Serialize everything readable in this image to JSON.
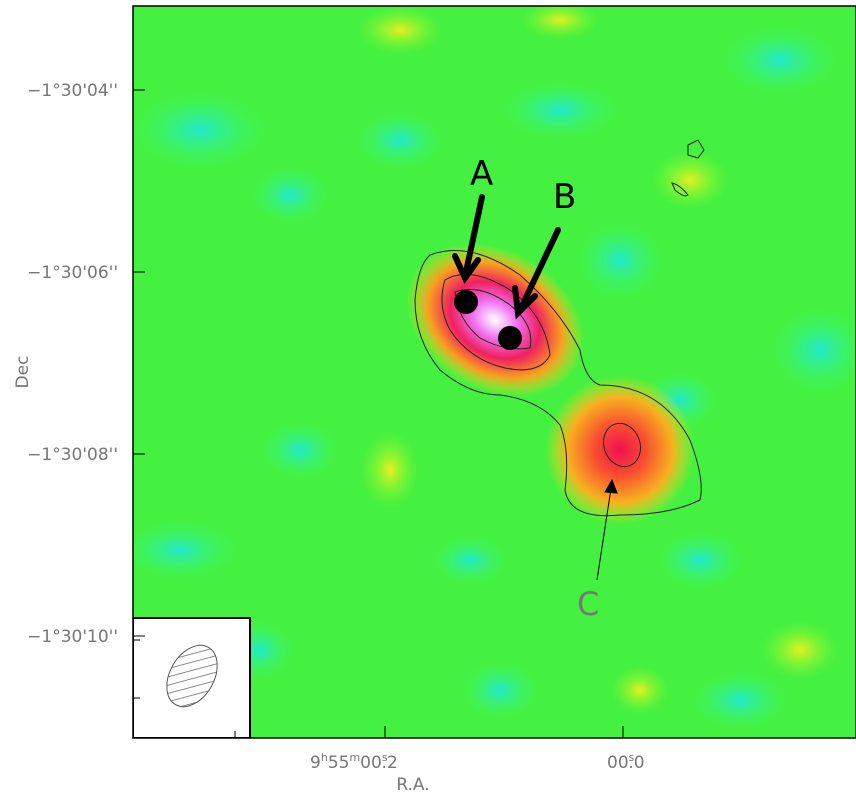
{
  "axes": {
    "y_label": "Dec",
    "x_label": "R.A.",
    "y_ticks": [
      "−1°30'04''",
      "−1°30'06''",
      "−1°30'08''",
      "−1°30'10''"
    ],
    "x_ticks": [
      [
        "9",
        "h",
        "55",
        "m",
        "00",
        "s",
        ".2"
      ],
      [
        "00",
        "s",
        ".0"
      ]
    ]
  },
  "annotations": [
    "A",
    "B",
    "C"
  ]
}
